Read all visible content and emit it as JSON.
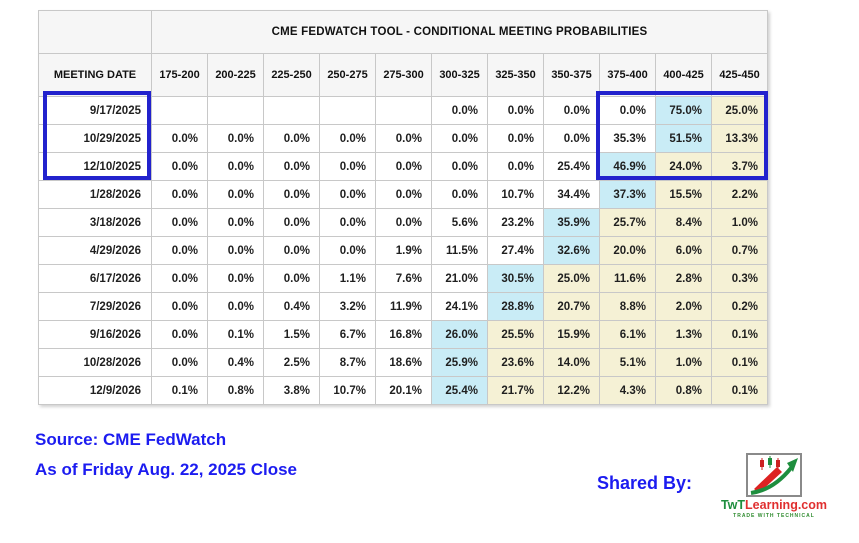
{
  "chart_data": {
    "type": "table",
    "title": "CME FEDWATCH TOOL - CONDITIONAL MEETING PROBABILITIES",
    "row_header": "MEETING DATE",
    "columns": [
      "175-200",
      "200-225",
      "225-250",
      "250-275",
      "275-300",
      "300-325",
      "325-350",
      "350-375",
      "375-400",
      "400-425",
      "425-450"
    ],
    "rows": [
      {
        "date": "9/17/2025",
        "values": [
          "",
          "",
          "",
          "",
          "",
          "0.0%",
          "0.0%",
          "0.0%",
          "0.0%",
          "75.0%",
          "25.0%"
        ],
        "highlight": [
          "",
          "",
          "",
          "",
          "",
          "",
          "",
          "",
          "",
          "cyan",
          "yellow"
        ]
      },
      {
        "date": "10/29/2025",
        "values": [
          "0.0%",
          "0.0%",
          "0.0%",
          "0.0%",
          "0.0%",
          "0.0%",
          "0.0%",
          "0.0%",
          "35.3%",
          "51.5%",
          "13.3%"
        ],
        "highlight": [
          "",
          "",
          "",
          "",
          "",
          "",
          "",
          "",
          "",
          "cyan",
          "yellow"
        ]
      },
      {
        "date": "12/10/2025",
        "values": [
          "0.0%",
          "0.0%",
          "0.0%",
          "0.0%",
          "0.0%",
          "0.0%",
          "0.0%",
          "25.4%",
          "46.9%",
          "24.0%",
          "3.7%"
        ],
        "highlight": [
          "",
          "",
          "",
          "",
          "",
          "",
          "",
          "",
          "cyan",
          "yellow",
          "yellow"
        ]
      },
      {
        "date": "1/28/2026",
        "values": [
          "0.0%",
          "0.0%",
          "0.0%",
          "0.0%",
          "0.0%",
          "0.0%",
          "10.7%",
          "34.4%",
          "37.3%",
          "15.5%",
          "2.2%"
        ],
        "highlight": [
          "",
          "",
          "",
          "",
          "",
          "",
          "",
          "",
          "cyan",
          "yellow",
          "yellow"
        ]
      },
      {
        "date": "3/18/2026",
        "values": [
          "0.0%",
          "0.0%",
          "0.0%",
          "0.0%",
          "0.0%",
          "5.6%",
          "23.2%",
          "35.9%",
          "25.7%",
          "8.4%",
          "1.0%"
        ],
        "highlight": [
          "",
          "",
          "",
          "",
          "",
          "",
          "",
          "cyan",
          "yellow",
          "yellow",
          "yellow"
        ]
      },
      {
        "date": "4/29/2026",
        "values": [
          "0.0%",
          "0.0%",
          "0.0%",
          "0.0%",
          "1.9%",
          "11.5%",
          "27.4%",
          "32.6%",
          "20.0%",
          "6.0%",
          "0.7%"
        ],
        "highlight": [
          "",
          "",
          "",
          "",
          "",
          "",
          "",
          "cyan",
          "yellow",
          "yellow",
          "yellow"
        ]
      },
      {
        "date": "6/17/2026",
        "values": [
          "0.0%",
          "0.0%",
          "0.0%",
          "1.1%",
          "7.6%",
          "21.0%",
          "30.5%",
          "25.0%",
          "11.6%",
          "2.8%",
          "0.3%"
        ],
        "highlight": [
          "",
          "",
          "",
          "",
          "",
          "",
          "cyan",
          "yellow",
          "yellow",
          "yellow",
          "yellow"
        ]
      },
      {
        "date": "7/29/2026",
        "values": [
          "0.0%",
          "0.0%",
          "0.4%",
          "3.2%",
          "11.9%",
          "24.1%",
          "28.8%",
          "20.7%",
          "8.8%",
          "2.0%",
          "0.2%"
        ],
        "highlight": [
          "",
          "",
          "",
          "",
          "",
          "",
          "cyan",
          "yellow",
          "yellow",
          "yellow",
          "yellow"
        ]
      },
      {
        "date": "9/16/2026",
        "values": [
          "0.0%",
          "0.1%",
          "1.5%",
          "6.7%",
          "16.8%",
          "26.0%",
          "25.5%",
          "15.9%",
          "6.1%",
          "1.3%",
          "0.1%"
        ],
        "highlight": [
          "",
          "",
          "",
          "",
          "",
          "cyan",
          "yellow",
          "yellow",
          "yellow",
          "yellow",
          "yellow"
        ]
      },
      {
        "date": "10/28/2026",
        "values": [
          "0.0%",
          "0.4%",
          "2.5%",
          "8.7%",
          "18.6%",
          "25.9%",
          "23.6%",
          "14.0%",
          "5.1%",
          "1.0%",
          "0.1%"
        ],
        "highlight": [
          "",
          "",
          "",
          "",
          "",
          "cyan",
          "yellow",
          "yellow",
          "yellow",
          "yellow",
          "yellow"
        ]
      },
      {
        "date": "12/9/2026",
        "values": [
          "0.1%",
          "0.8%",
          "3.8%",
          "10.7%",
          "20.1%",
          "25.4%",
          "21.7%",
          "12.2%",
          "4.3%",
          "0.8%",
          "0.1%"
        ],
        "highlight": [
          "",
          "",
          "",
          "",
          "",
          "cyan",
          "yellow",
          "yellow",
          "yellow",
          "yellow",
          "yellow"
        ]
      }
    ],
    "emphasis_boxes": {
      "meeting_dates_rows": [
        0,
        1,
        2
      ],
      "rate_columns": [
        "375-400",
        "400-425",
        "425-450"
      ]
    }
  },
  "footer": {
    "source_line1": "Source: CME FedWatch",
    "source_line2": "As of Friday Aug. 22, 2025 Close",
    "shared_by": "Shared By:",
    "logo_text_prefix": "TwT",
    "logo_text_suffix": "Learning.com",
    "logo_tagline": "TRADE WITH TECHNICAL"
  },
  "colors": {
    "highlight_cyan": "#c9ecf6",
    "highlight_yellow": "#f5f1d5",
    "emphasis_box_blue": "#2222cd",
    "footer_text_blue": "#1c1cf0"
  }
}
